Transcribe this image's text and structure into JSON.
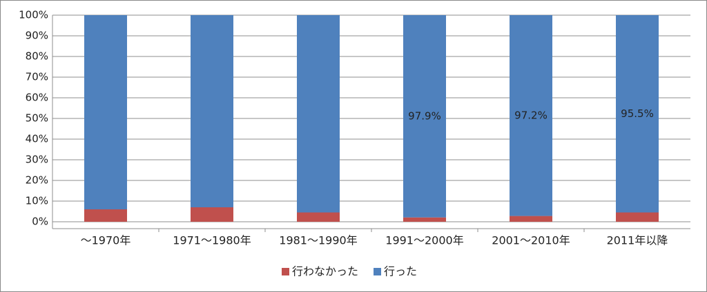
{
  "chart_data": {
    "type": "stacked_bar",
    "categories": [
      "～1970年",
      "1971～1980年",
      "1981～1990年",
      "1991～2000年",
      "2001～2010年",
      "2011年以降"
    ],
    "series": [
      {
        "name": "行わなかった",
        "color": "#c0504d",
        "values": [
          6.0,
          7.0,
          4.5,
          2.1,
          2.8,
          4.5
        ]
      },
      {
        "name": "行った",
        "color": "#4f81bd",
        "values": [
          94.0,
          93.0,
          95.5,
          97.9,
          97.2,
          95.5
        ],
        "value_labels": [
          null,
          null,
          null,
          "97.9%",
          "97.2%",
          "95.5%"
        ]
      }
    ],
    "ylim": [
      0,
      100
    ],
    "yticks": [
      {
        "value": 0,
        "label": "0%"
      },
      {
        "value": 10,
        "label": "10%"
      },
      {
        "value": 20,
        "label": "20%"
      },
      {
        "value": 30,
        "label": "30%"
      },
      {
        "value": 40,
        "label": "40%"
      },
      {
        "value": 50,
        "label": "50%"
      },
      {
        "value": 60,
        "label": "60%"
      },
      {
        "value": 70,
        "label": "70%"
      },
      {
        "value": 80,
        "label": "80%"
      },
      {
        "value": 90,
        "label": "90%"
      },
      {
        "value": 100,
        "label": "100%"
      }
    ],
    "grid": true,
    "legend": "bottom"
  }
}
